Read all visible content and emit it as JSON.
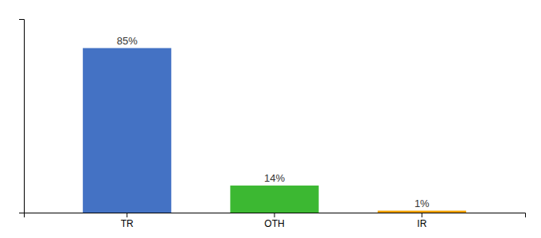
{
  "chart_data": {
    "type": "bar",
    "categories": [
      "TR",
      "OTH",
      "IR"
    ],
    "values": [
      85,
      14,
      1
    ],
    "value_labels": [
      "85%",
      "14%",
      "1%"
    ],
    "colors": [
      "#4472c4",
      "#3cb832",
      "#f0a000"
    ],
    "ylim": [
      0,
      100
    ],
    "yticks": [],
    "data_labels": true,
    "tick_labels": "x"
  }
}
